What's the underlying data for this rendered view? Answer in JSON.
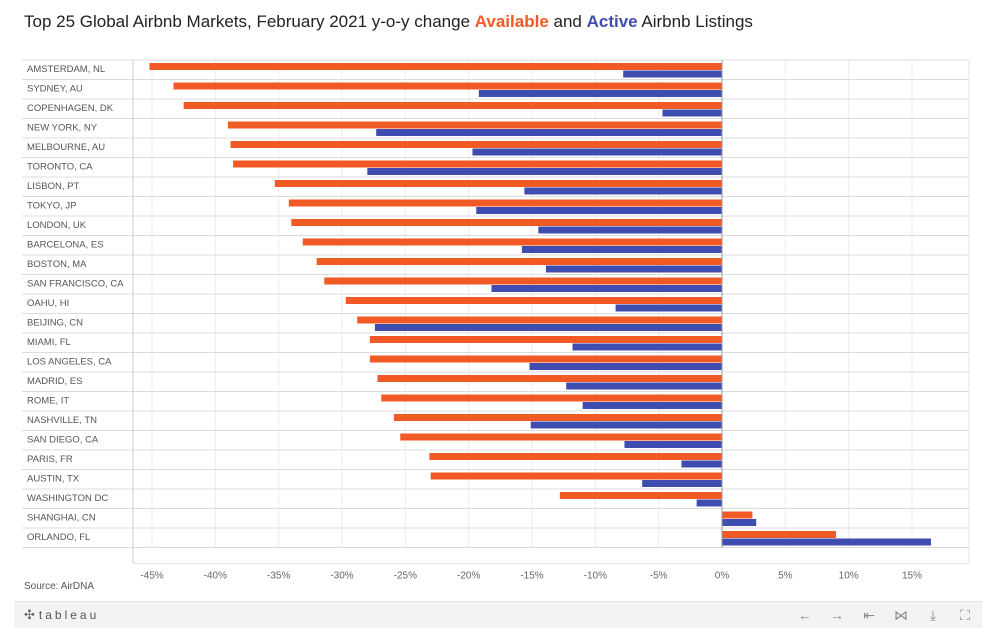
{
  "header": {
    "title_prefix": "Top 25 Global Airbnb Markets, February 2021 y-o-y change ",
    "title_available": "Available",
    "title_and": " and ",
    "title_active": "Active",
    "title_suffix": " Airbnb Listings"
  },
  "footer": {
    "source": "Source: AirDNA"
  },
  "toolbar": {
    "brand": "tableau",
    "buttons": [
      {
        "icon": "undo-icon",
        "glyph": "←"
      },
      {
        "icon": "redo-icon",
        "glyph": "→"
      },
      {
        "icon": "revert-icon",
        "glyph": "⇤"
      },
      {
        "icon": "share-icon",
        "glyph": "⋈"
      },
      {
        "icon": "download-icon",
        "glyph": "⤓"
      },
      {
        "icon": "fullscreen-icon",
        "glyph": "⛶"
      }
    ]
  },
  "colors": {
    "available": "#f15a24",
    "active": "#3f4db0"
  },
  "chart_data": {
    "type": "bar",
    "orientation": "horizontal",
    "categories": [
      "AMSTERDAM, NL",
      "SYDNEY, AU",
      "COPENHAGEN, DK",
      "NEW YORK, NY",
      "MELBOURNE, AU",
      "TORONTO, CA",
      "LISBON, PT",
      "TOKYO, JP",
      "LONDON, UK",
      "BARCELONA, ES",
      "BOSTON, MA",
      "SAN FRANCISCO, CA",
      "OAHU, HI",
      "BEIJING, CN",
      "MIAMI, FL",
      "LOS ANGELES, CA",
      "MADRID, ES",
      "ROME, IT",
      "NASHVILLE, TN",
      "SAN DIEGO, CA",
      "PARIS, FR",
      "AUSTIN, TX",
      "WASHINGTON DC",
      "SHANGHAI, CN",
      "ORLANDO, FL"
    ],
    "series": [
      {
        "name": "Available",
        "color": "#f15a24",
        "values": [
          -45.2,
          -43.3,
          -42.5,
          -39.0,
          -38.8,
          -38.6,
          -35.3,
          -34.2,
          -34.0,
          -33.1,
          -32.0,
          -31.4,
          -29.7,
          -28.8,
          -27.8,
          -27.8,
          -27.2,
          -26.9,
          -25.9,
          -25.4,
          -23.1,
          -23.0,
          -12.8,
          2.4,
          9.0
        ]
      },
      {
        "name": "Active",
        "color": "#3f4db0",
        "values": [
          -7.8,
          -19.2,
          -4.7,
          -27.3,
          -19.7,
          -28.0,
          -15.6,
          -19.4,
          -14.5,
          -15.8,
          -13.9,
          -18.2,
          -8.4,
          -27.4,
          -11.8,
          -15.2,
          -12.3,
          -11.0,
          -15.1,
          -7.7,
          -3.2,
          -6.3,
          -2.0,
          2.7,
          16.5
        ]
      }
    ],
    "xlim": [
      -46.5,
      19.5
    ],
    "xticks": [
      -45,
      -40,
      -35,
      -30,
      -25,
      -20,
      -15,
      -10,
      -5,
      0,
      5,
      10,
      15
    ],
    "xtick_labels": [
      "-45%",
      "-40%",
      "-35%",
      "-30%",
      "-25%",
      "-20%",
      "-15%",
      "-10%",
      "-5%",
      "0%",
      "5%",
      "10%",
      "15%"
    ],
    "title": "Top 25 Global Airbnb Markets, February 2021 y-o-y change Available and Active Airbnb Listings",
    "xlabel": "",
    "ylabel": "",
    "grid": true,
    "legend": "none"
  }
}
